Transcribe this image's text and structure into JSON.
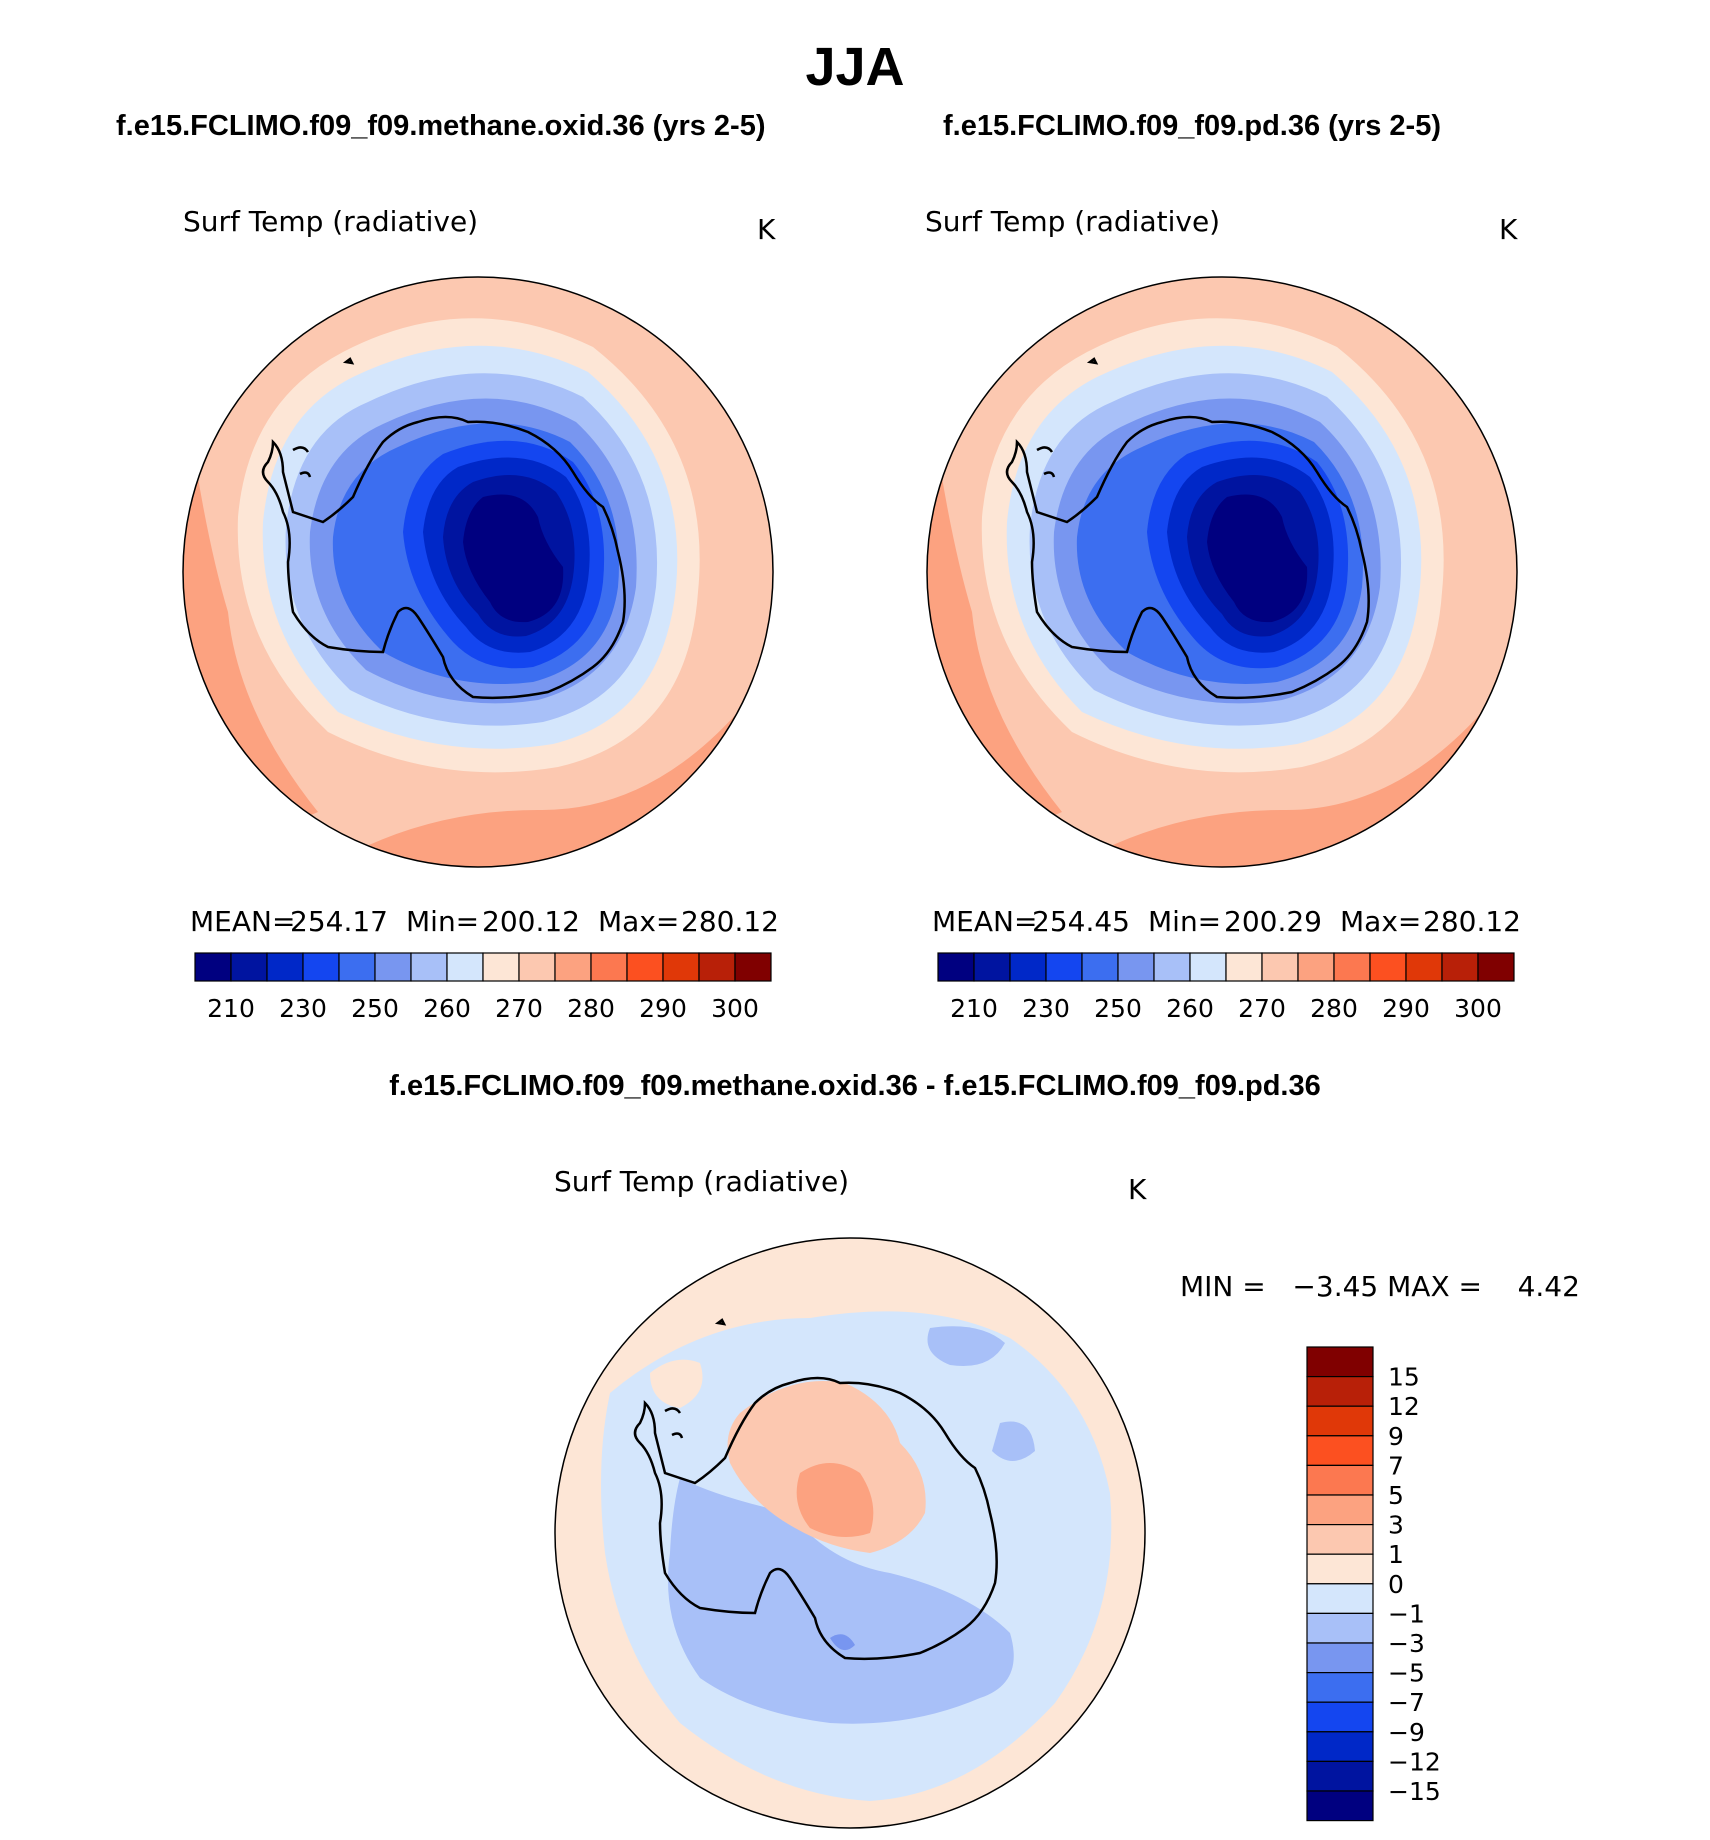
{
  "title": "JJA",
  "panels": [
    {
      "case": "f.e15.FCLIMO.f09_f09.methane.oxid.36 (yrs 2-5)",
      "variable": "Surf Temp (radiative)",
      "units": "K",
      "stats": {
        "mean_label": "MEAN=",
        "mean": "254.17",
        "min_label": "Min=",
        "min": "200.12",
        "max_label": "Max=",
        "max": "280.12"
      }
    },
    {
      "case": "f.e15.FCLIMO.f09_f09.pd.36 (yrs 2-5)",
      "variable": "Surf Temp (radiative)",
      "units": "K",
      "stats": {
        "mean_label": "MEAN=",
        "mean": "254.45",
        "min_label": "Min=",
        "min": "200.29",
        "max_label": "Max=",
        "max": "280.12"
      }
    }
  ],
  "abs_colorbar": {
    "colors": [
      "#000080",
      "#0014a0",
      "#0028c8",
      "#1446f0",
      "#3c6ef0",
      "#7896f0",
      "#a8c0f8",
      "#d4e6fc",
      "#fde6d6",
      "#fcc8b0",
      "#fca280",
      "#fc7850",
      "#fc5020",
      "#e03808",
      "#b82008",
      "#800000"
    ],
    "labels": [
      "210",
      "230",
      "250",
      "260",
      "270",
      "280",
      "290",
      "300"
    ]
  },
  "difference": {
    "title": "f.e15.FCLIMO.f09_f09.methane.oxid.36 - f.e15.FCLIMO.f09_f09.pd.36",
    "variable": "Surf Temp (radiative)",
    "units": "K",
    "stats_text": "MIN =   −3.45 MAX =    4.42",
    "min": -3.45,
    "max": 4.42
  },
  "diff_colorbar": {
    "colors": [
      "#800000",
      "#b82008",
      "#e03808",
      "#fc5020",
      "#fc7850",
      "#fca280",
      "#fcc8b0",
      "#fde6d6",
      "#d4e6fc",
      "#a8c0f8",
      "#7896f0",
      "#3c6ef0",
      "#1446f0",
      "#0028c8",
      "#0014a0",
      "#000080"
    ],
    "labels": [
      "15",
      "12",
      "9",
      "7",
      "5",
      "3",
      "1",
      "0",
      "−1",
      "−3",
      "−5",
      "−7",
      "−9",
      "−12",
      "−15"
    ]
  }
}
